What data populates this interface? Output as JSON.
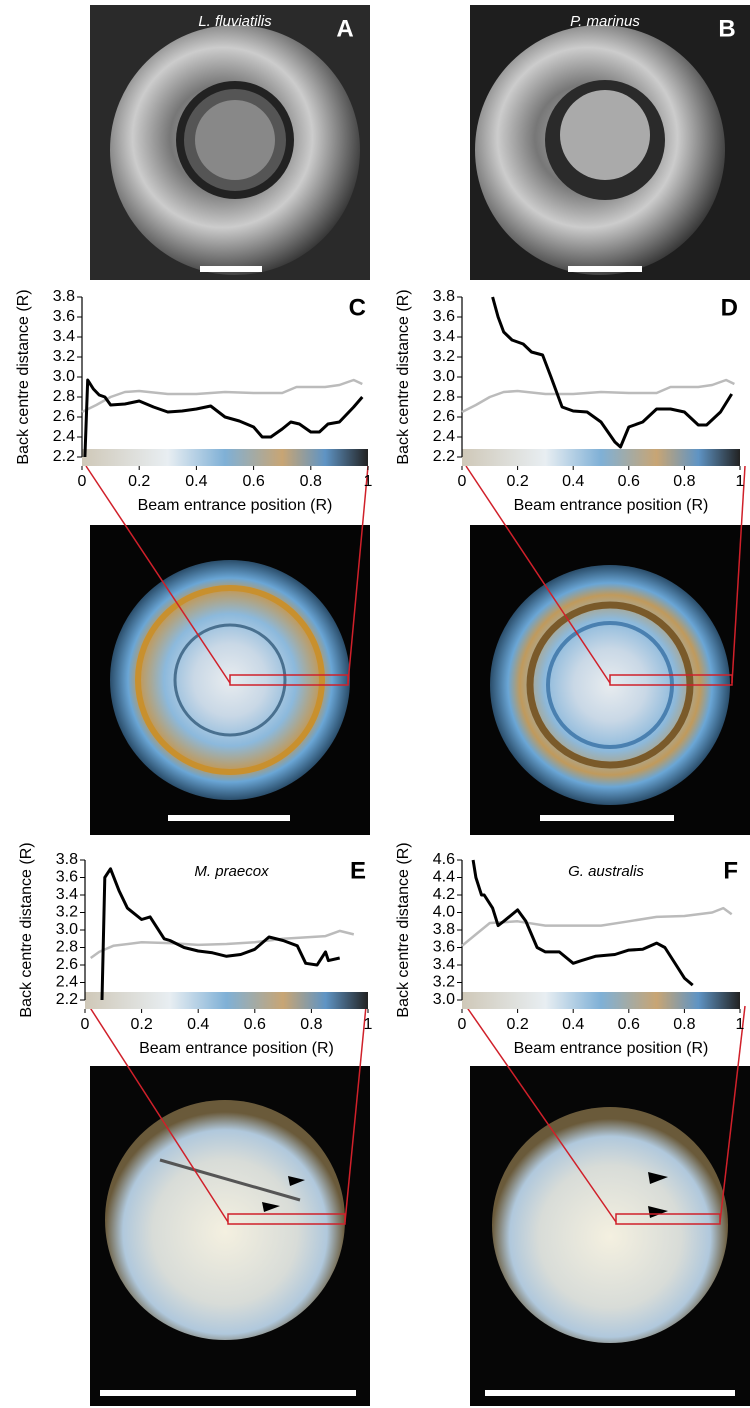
{
  "photos": [
    {
      "label": "A",
      "species": "L. fluviatilis"
    },
    {
      "label": "B",
      "species": "P. marinus"
    }
  ],
  "chart_data": [
    {
      "type": "line",
      "panel": "C",
      "xlabel": "Beam entrance position (R)",
      "ylabel": "Back centre distance (R)",
      "xlim": [
        0,
        1
      ],
      "ylim": [
        2.2,
        3.8
      ],
      "xticks": [
        0,
        0.2,
        0.4,
        0.6,
        0.8,
        1
      ],
      "yticks": [
        2.2,
        2.4,
        2.6,
        2.8,
        {
          "value": 3,
          "label": "3.0"
        },
        3.2,
        3.4,
        3.6,
        3.8
      ],
      "series": [
        {
          "color": "#bbbbbb",
          "x": [
            0,
            0.05,
            0.1,
            0.15,
            0.2,
            0.3,
            0.4,
            0.5,
            0.6,
            0.7,
            0.75,
            0.85,
            0.9,
            0.95,
            0.98
          ],
          "values": [
            2.65,
            2.72,
            2.8,
            2.85,
            2.86,
            2.83,
            2.83,
            2.85,
            2.84,
            2.84,
            2.9,
            2.9,
            2.92,
            2.97,
            2.93
          ]
        },
        {
          "color": "#000000",
          "x": [
            0.01,
            0.02,
            0.04,
            0.06,
            0.08,
            0.1,
            0.15,
            0.2,
            0.25,
            0.3,
            0.35,
            0.4,
            0.45,
            0.5,
            0.55,
            0.6,
            0.63,
            0.66,
            0.7,
            0.73,
            0.76,
            0.8,
            0.83,
            0.86,
            0.9,
            0.95,
            0.98
          ],
          "values": [
            2.2,
            2.97,
            2.88,
            2.82,
            2.8,
            2.72,
            2.73,
            2.76,
            2.7,
            2.65,
            2.66,
            2.68,
            2.71,
            2.6,
            2.56,
            2.5,
            2.4,
            2.4,
            2.48,
            2.55,
            2.53,
            2.45,
            2.45,
            2.53,
            2.55,
            2.7,
            2.8
          ]
        }
      ]
    },
    {
      "type": "line",
      "panel": "D",
      "xlabel": "Beam entrance position (R)",
      "ylabel": "Back centre distance (R)",
      "xlim": [
        0,
        1
      ],
      "ylim": [
        2.2,
        3.8
      ],
      "xticks": [
        0,
        0.2,
        0.4,
        0.6,
        0.8,
        1
      ],
      "yticks": [
        2.2,
        2.4,
        2.6,
        2.8,
        {
          "value": 3,
          "label": "3.0"
        },
        3.2,
        3.4,
        3.6,
        3.8
      ],
      "series": [
        {
          "color": "#bbbbbb",
          "x": [
            0,
            0.05,
            0.1,
            0.15,
            0.2,
            0.3,
            0.4,
            0.5,
            0.6,
            0.7,
            0.75,
            0.85,
            0.9,
            0.95,
            0.98
          ],
          "values": [
            2.65,
            2.72,
            2.8,
            2.85,
            2.86,
            2.83,
            2.83,
            2.85,
            2.84,
            2.84,
            2.9,
            2.9,
            2.92,
            2.97,
            2.93
          ]
        },
        {
          "color": "#000000",
          "x": [
            0.11,
            0.13,
            0.15,
            0.18,
            0.22,
            0.25,
            0.29,
            0.32,
            0.36,
            0.4,
            0.45,
            0.5,
            0.55,
            0.57,
            0.6,
            0.65,
            0.7,
            0.75,
            0.8,
            0.85,
            0.88,
            0.93,
            0.97
          ],
          "values": [
            3.8,
            3.6,
            3.45,
            3.37,
            3.33,
            3.25,
            3.22,
            3.0,
            2.7,
            2.66,
            2.65,
            2.55,
            2.35,
            2.3,
            2.5,
            2.55,
            2.68,
            2.68,
            2.65,
            2.52,
            2.52,
            2.65,
            2.83
          ]
        }
      ]
    },
    {
      "type": "line",
      "panel": "E",
      "annotation": "M. praecox",
      "xlabel": "Beam entrance position (R)",
      "ylabel": "Back centre distance (R)",
      "xlim": [
        0,
        1
      ],
      "ylim": [
        2.2,
        3.8
      ],
      "xticks": [
        0,
        0.2,
        0.4,
        0.6,
        0.8,
        1
      ],
      "yticks": [
        2.2,
        2.4,
        2.6,
        2.8,
        {
          "value": 3,
          "label": "3.0"
        },
        3.2,
        3.4,
        3.6,
        3.8
      ],
      "series": [
        {
          "color": "#bbbbbb",
          "x": [
            0.02,
            0.05,
            0.1,
            0.2,
            0.3,
            0.4,
            0.5,
            0.6,
            0.7,
            0.8,
            0.85,
            0.9,
            0.95
          ],
          "values": [
            2.68,
            2.75,
            2.82,
            2.86,
            2.85,
            2.83,
            2.84,
            2.86,
            2.9,
            2.92,
            2.93,
            2.99,
            2.95
          ]
        },
        {
          "color": "#000000",
          "x": [
            0.06,
            0.07,
            0.09,
            0.12,
            0.15,
            0.2,
            0.23,
            0.28,
            0.3,
            0.35,
            0.4,
            0.45,
            0.5,
            0.55,
            0.6,
            0.65,
            0.7,
            0.75,
            0.78,
            0.82,
            0.85,
            0.86,
            0.9
          ],
          "values": [
            2.2,
            3.6,
            3.7,
            3.45,
            3.25,
            3.12,
            3.15,
            2.9,
            2.88,
            2.8,
            2.76,
            2.74,
            2.7,
            2.72,
            2.78,
            2.92,
            2.88,
            2.82,
            2.62,
            2.6,
            2.75,
            2.65,
            2.68
          ]
        }
      ]
    },
    {
      "type": "line",
      "panel": "F",
      "annotation": "G. australis",
      "xlabel": "Beam entrance position (R)",
      "ylabel": "Back centre distance (R)",
      "xlim": [
        0,
        1
      ],
      "ylim": [
        3,
        4.6
      ],
      "xticks": [
        0,
        0.2,
        0.4,
        0.6,
        0.8,
        1
      ],
      "yticks": [
        {
          "value": 3,
          "label": "3.0"
        },
        3.2,
        3.4,
        3.6,
        3.8,
        {
          "value": 4,
          "label": "4.0"
        },
        4.2,
        4.4,
        4.6
      ],
      "series": [
        {
          "color": "#bbbbbb",
          "x": [
            0,
            0.05,
            0.1,
            0.2,
            0.3,
            0.5,
            0.6,
            0.7,
            0.8,
            0.9,
            0.94,
            0.97
          ],
          "values": [
            3.62,
            3.75,
            3.88,
            3.9,
            3.85,
            3.85,
            3.9,
            3.95,
            3.96,
            4.0,
            4.05,
            3.98
          ]
        },
        {
          "color": "#000000",
          "x": [
            0.04,
            0.05,
            0.07,
            0.08,
            0.11,
            0.13,
            0.15,
            0.2,
            0.23,
            0.27,
            0.3,
            0.35,
            0.4,
            0.43,
            0.48,
            0.55,
            0.6,
            0.65,
            0.7,
            0.73,
            0.77,
            0.8,
            0.83
          ],
          "values": [
            4.6,
            4.4,
            4.2,
            4.2,
            4.05,
            3.85,
            3.9,
            4.03,
            3.9,
            3.6,
            3.55,
            3.55,
            3.42,
            3.45,
            3.5,
            3.52,
            3.57,
            3.58,
            3.65,
            3.6,
            3.4,
            3.25,
            3.17
          ]
        }
      ]
    }
  ]
}
